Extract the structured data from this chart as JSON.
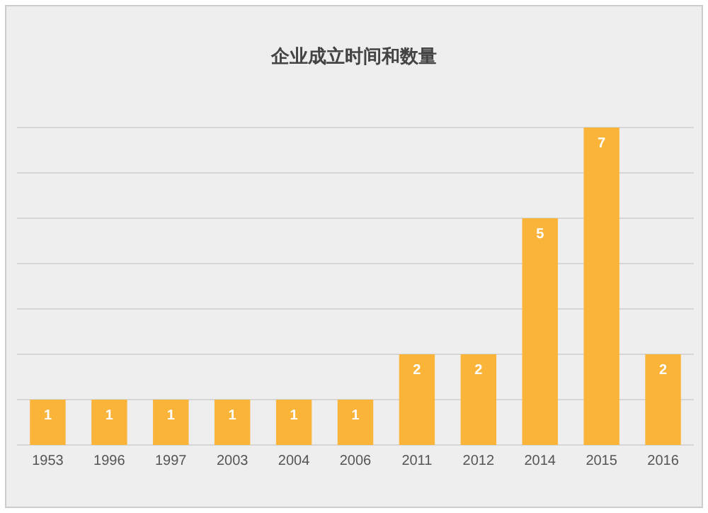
{
  "chart_data": {
    "type": "bar",
    "title": "企业成立时间和数量",
    "categories": [
      "1953",
      "1996",
      "1997",
      "2003",
      "2004",
      "2006",
      "2011",
      "2012",
      "2014",
      "2015",
      "2016"
    ],
    "values": [
      1,
      1,
      1,
      1,
      1,
      1,
      2,
      2,
      5,
      7,
      2
    ],
    "color": "#fbb43a",
    "ylim": [
      0,
      7
    ],
    "yticks": [
      {
        "value": 0,
        "label": null
      },
      {
        "value": 1,
        "label": null
      },
      {
        "value": 2,
        "label": null
      },
      {
        "value": 3,
        "label": null
      },
      {
        "value": 4,
        "label": null
      },
      {
        "value": 5,
        "label": null
      },
      {
        "value": 6,
        "label": null
      },
      {
        "value": 7,
        "label": null
      }
    ],
    "tick_labels": "x",
    "grid": "y",
    "data_labels": true
  }
}
